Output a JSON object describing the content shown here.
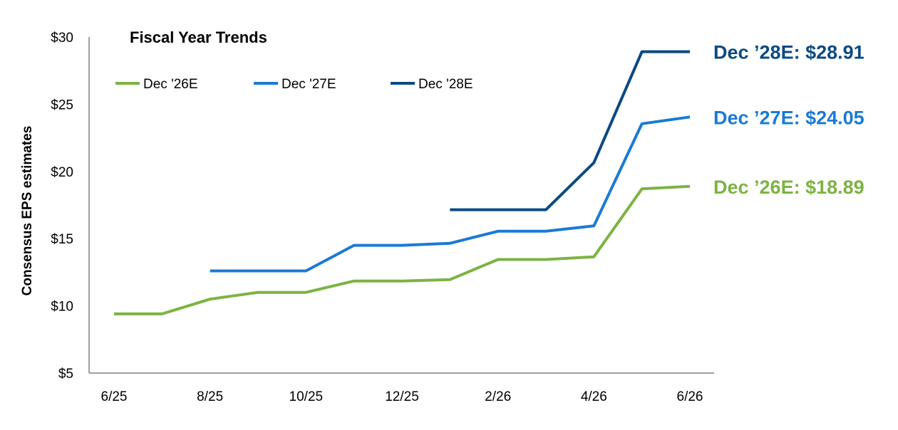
{
  "chart_data": {
    "type": "line",
    "title": "Fiscal Year Trends",
    "xlabel": "",
    "ylabel": "Consensus EPS estimates",
    "x": [
      "6/25",
      "7/25",
      "8/25",
      "9/25",
      "10/25",
      "11/25",
      "12/25",
      "1/26",
      "2/26",
      "3/26",
      "4/26",
      "5/26",
      "6/26"
    ],
    "x_tick_labels": [
      "6/25",
      "8/25",
      "10/25",
      "12/25",
      "2/26",
      "4/26",
      "6/26"
    ],
    "y_tick_labels": [
      "$5",
      "$10",
      "$15",
      "$20",
      "$25",
      "$30"
    ],
    "ylim": [
      5,
      30
    ],
    "grid": false,
    "legend": "top-left",
    "series": [
      {
        "name": "Dec '26E",
        "color": "#7cb342",
        "values": [
          9.4,
          9.4,
          10.5,
          11.0,
          11.0,
          11.85,
          11.85,
          11.95,
          13.45,
          13.45,
          13.65,
          18.7,
          18.89
        ],
        "end_label": "Dec ’26E: $18.89"
      },
      {
        "name": "Dec '27E",
        "color": "#1a7ad4",
        "values": [
          null,
          null,
          12.6,
          12.6,
          12.6,
          14.5,
          14.5,
          14.65,
          15.55,
          15.55,
          15.95,
          23.55,
          24.05
        ],
        "end_label": "Dec ’27E: $24.05"
      },
      {
        "name": "Dec '28E",
        "color": "#0b4a82",
        "values": [
          null,
          null,
          null,
          null,
          null,
          null,
          null,
          17.15,
          17.15,
          17.15,
          20.65,
          28.91,
          28.91
        ],
        "end_label": "Dec ’28E: $28.91"
      }
    ]
  }
}
